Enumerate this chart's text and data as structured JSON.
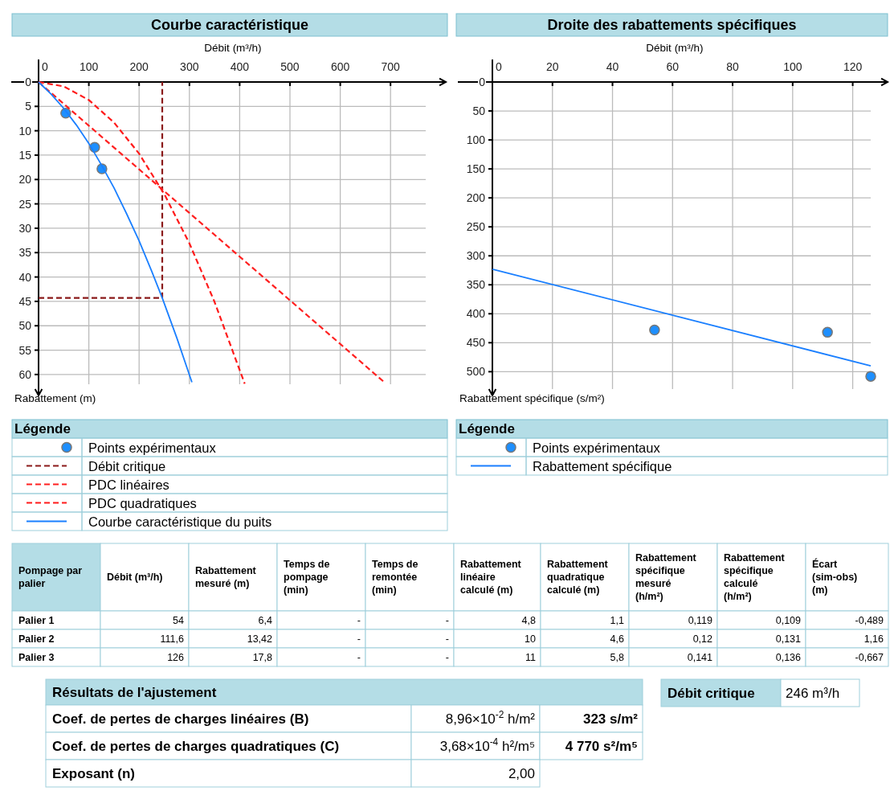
{
  "chart_data": [
    {
      "type": "line",
      "title": "Courbe caractéristique",
      "xlabel": "Débit (m³/h)",
      "ylabel": "Rabattement (m)",
      "legend_title": "Légende",
      "legend": "bottom",
      "grid": true,
      "xlim": [
        0,
        770
      ],
      "ylim": [
        62,
        0
      ],
      "xticks": [
        0,
        100,
        200,
        300,
        400,
        500,
        600,
        700
      ],
      "yticks": [
        0,
        5,
        10,
        15,
        20,
        25,
        30,
        35,
        40,
        45,
        50,
        55,
        60
      ],
      "series": [
        {
          "name": "Points expérimentaux",
          "type": "scatter",
          "marker": "circle",
          "color": "#1e8fff",
          "x": [
            54,
            111.6,
            126
          ],
          "values": [
            6.4,
            13.4,
            17.8
          ]
        },
        {
          "name": "Débit critique",
          "type": "line",
          "line_style": "dashed",
          "color": "#8b1a1a",
          "x": [
            0,
            246,
            246
          ],
          "values": [
            44.3,
            44.3,
            0
          ]
        },
        {
          "name": "PDC linéaires",
          "type": "line",
          "line_style": "dashed",
          "color": "#ff2020",
          "x": [
            0,
            690
          ],
          "values": [
            0,
            61.8
          ]
        },
        {
          "name": "PDC quadratiques",
          "type": "line",
          "line_style": "dashed",
          "color": "#ff1a1a",
          "x": [
            0,
            50,
            100,
            150,
            200,
            250,
            300,
            350,
            410
          ],
          "values": [
            0,
            0.9,
            3.7,
            8.3,
            14.7,
            23,
            33.1,
            45.1,
            61.9
          ]
        },
        {
          "name": "Courbe caractéristique du puits",
          "type": "line",
          "line_style": "solid",
          "color": "#1a7fff",
          "x": [
            0,
            25,
            50,
            75,
            100,
            125,
            150,
            175,
            200,
            225,
            246,
            275,
            305
          ],
          "values": [
            0,
            2.5,
            5.4,
            8.8,
            12.6,
            17,
            21.7,
            27,
            32.6,
            38.8,
            44.3,
            52.5,
            61.6
          ]
        }
      ]
    },
    {
      "type": "line",
      "title": "Droite des rabattements spécifiques",
      "xlabel": "Débit (m³/h)",
      "ylabel": "Rabattement spécifique (s/m²)",
      "legend_title": "Légende",
      "legend": "bottom",
      "grid": true,
      "xlim": [
        0,
        126
      ],
      "ylim": [
        530,
        0
      ],
      "xticks": [
        0,
        20,
        40,
        60,
        80,
        100,
        120
      ],
      "yticks": [
        0,
        50,
        100,
        150,
        200,
        250,
        300,
        350,
        400,
        450,
        500
      ],
      "series": [
        {
          "name": "Points expérimentaux",
          "type": "scatter",
          "marker": "circle",
          "color": "#1e8fff",
          "x": [
            54,
            111.6,
            126
          ],
          "values": [
            428,
            432,
            508
          ]
        },
        {
          "name": "Rabattement spécifique",
          "type": "line",
          "line_style": "solid",
          "color": "#1a7fff",
          "x": [
            0,
            126
          ],
          "values": [
            323,
            490
          ]
        }
      ]
    },
    {
      "type": "other",
      "categories": [
        "Pompage par palier",
        "Débit (m³/h)",
        "Rabattement mesuré (m)",
        "Temps de pompage (min)",
        "Temps de remontée (min)",
        "Rabattement linéaire calculé (m)",
        "Rabattement quadratique calculé (m)",
        "Rabattement spécifique mesuré (h/m²)",
        "Rabattement spécifique calculé (h/m²)",
        "Écart (sim-obs) (m)"
      ],
      "y_categories": [
        "Palier 1",
        "Palier 2",
        "Palier 3"
      ],
      "cell_labels": [
        [
          "54",
          "6,4",
          "-",
          "-",
          "4,8",
          "1,1",
          "0,119",
          "0,109",
          "-0,489"
        ],
        [
          "111,6",
          "13,42",
          "-",
          "-",
          "10",
          "4,6",
          "0,12",
          "0,131",
          "1,16"
        ],
        [
          "126",
          "17,8",
          "-",
          "-",
          "11",
          "5,8",
          "0,141",
          "0,136",
          "-0,667"
        ]
      ]
    },
    {
      "type": "other",
      "title": "Résultats de l'ajustement",
      "y_categories": [
        "Coef. de pertes de charges linéaires (B)",
        "Coef. de pertes de charges quadratiques (C)",
        "Exposant (n)"
      ],
      "cell_labels": [
        [
          "8,96×10$^{-2}$ h/m²",
          "323 s/m²"
        ],
        [
          "3,68×10$^{-4}$ h²/m⁵",
          "4 770 s²/m⁵"
        ],
        [
          "2,00"
        ]
      ]
    },
    {
      "type": "other",
      "title": "Débit critique",
      "annotations": [
        "246 m³/h"
      ]
    }
  ]
}
